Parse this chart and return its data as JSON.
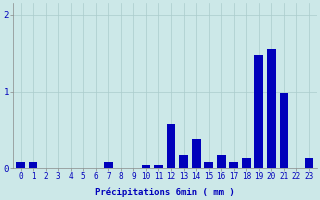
{
  "hours": [
    0,
    1,
    2,
    3,
    4,
    5,
    6,
    7,
    8,
    9,
    10,
    11,
    12,
    13,
    14,
    15,
    16,
    17,
    18,
    19,
    20,
    21,
    22,
    23
  ],
  "precip": [
    0.08,
    0.08,
    0.0,
    0.0,
    0.0,
    0.0,
    0.0,
    0.08,
    0.0,
    0.0,
    0.04,
    0.04,
    0.58,
    0.18,
    0.38,
    0.08,
    0.18,
    0.08,
    0.14,
    1.48,
    1.55,
    0.98,
    0.0,
    0.14
  ],
  "categories": [
    "0",
    "1",
    "2",
    "3",
    "4",
    "5",
    "6",
    "7",
    "8",
    "9",
    "10",
    "11",
    "12",
    "13",
    "14",
    "15",
    "16",
    "17",
    "18",
    "19",
    "20",
    "21",
    "22",
    "23"
  ],
  "bar_color": "#0000bb",
  "bg_color": "#cce8e8",
  "grid_color": "#aacccc",
  "xlabel": "Précipitations 6min ( mm )",
  "ylim": [
    0,
    2.15
  ],
  "yticks": [
    0,
    1,
    2
  ],
  "tick_fontsize": 5.5,
  "label_fontsize": 6.5,
  "tick_color": "#0000bb",
  "xlabel_color": "#0000bb"
}
